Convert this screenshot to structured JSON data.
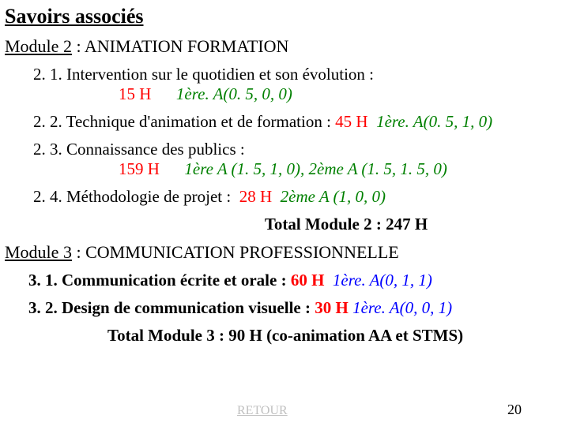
{
  "styles": {
    "text_color": "#000000",
    "red": "#ff0000",
    "green": "#008000",
    "blue": "#0000ff",
    "gray": "#c0c0c0",
    "background": "#ffffff",
    "title_fontsize": 26,
    "module_fontsize": 22,
    "body_fontsize": 21,
    "footer_fontsize": 16
  },
  "title": "Savoirs associés",
  "module2": {
    "label": "Module 2",
    "separator": " : ",
    "name": "ANIMATION FORMATION",
    "items": [
      {
        "num": "2. 1. ",
        "text": "Intervention sur le quotidien et son évolution :",
        "hours_prefix": "15 H",
        "code": "1ère. A(0. 5, 0, 0)",
        "code_color": "#008000",
        "multiline": true
      },
      {
        "num": "2. 2. ",
        "text": "Technique d'animation et de formation : ",
        "hours_prefix": "45 H",
        "code": "1ère. A(0. 5, 1, 0)",
        "code_color": "#008000",
        "multiline": false
      },
      {
        "num": "2. 3. ",
        "text": "Connaissance des publics :",
        "hours_prefix": "159 H",
        "code": "1ère A (1. 5, 1, 0), 2ème A (1. 5, 1. 5, 0)",
        "code_color": "#008000",
        "multiline": true
      },
      {
        "num": "2. 4. ",
        "text": "Méthodologie de projet : ",
        "hours_prefix": "28 H",
        "code": "2ème A (1, 0, 0)",
        "code_color": "#008000",
        "multiline": false
      }
    ],
    "total": "Total Module 2 : 247 H"
  },
  "module3": {
    "label": "Module 3",
    "separator": " : ",
    "name": "COMMUNICATION PROFESSIONNELLE",
    "items": [
      {
        "num": "3. 1. ",
        "text": "Communication écrite et orale : ",
        "hours_prefix": "60 H",
        "code": "1ère. A(0, 1, 1)",
        "code_color": "#0000ff"
      },
      {
        "num": "3. 2. ",
        "text": "Design de communication visuelle : ",
        "hours_prefix": "30 H",
        "code": "1ère. A(0, 0, 1)",
        "code_color": "#0000ff"
      }
    ],
    "total": "Total Module 3 : 90 H (co-animation AA et STMS)"
  },
  "footer": {
    "retour": "RETOUR",
    "page": "20"
  }
}
